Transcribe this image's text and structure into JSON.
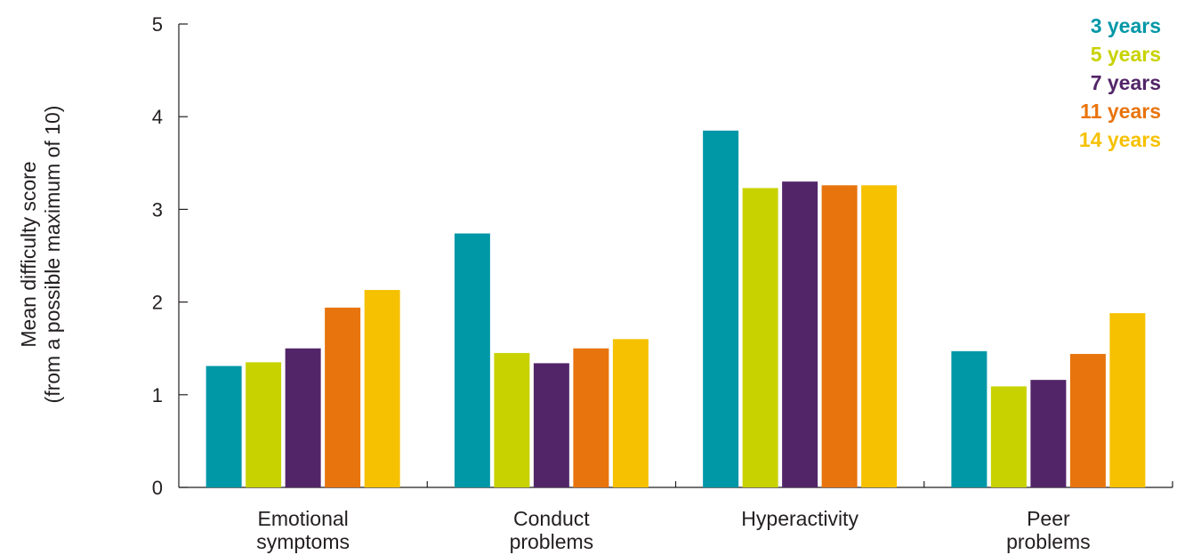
{
  "chart_data": {
    "type": "bar",
    "categories": [
      [
        "Emotional",
        "symptoms"
      ],
      [
        "Conduct",
        "problems"
      ],
      [
        "Hyperactivity"
      ],
      [
        "Peer",
        "problems"
      ]
    ],
    "series": [
      {
        "name": "3 years",
        "color": "#0097a7",
        "values": [
          1.31,
          2.74,
          3.85,
          1.47
        ]
      },
      {
        "name": "5 years",
        "color": "#c8d200",
        "values": [
          1.35,
          1.45,
          3.23,
          1.09
        ]
      },
      {
        "name": "7 years",
        "color": "#522568",
        "values": [
          1.5,
          1.34,
          3.3,
          1.16
        ]
      },
      {
        "name": "11 years",
        "color": "#e8740d",
        "values": [
          1.94,
          1.5,
          3.26,
          1.44
        ]
      },
      {
        "name": "14 years",
        "color": "#f6c100",
        "values": [
          2.13,
          1.6,
          3.26,
          1.88
        ]
      }
    ],
    "ylabel": [
      "Mean difficulty score",
      "(from a possible maximum of 10)"
    ],
    "ylim": [
      0,
      5
    ],
    "yticks": [
      0,
      1,
      2,
      3,
      4,
      5
    ],
    "grid": false,
    "legend_position": "top-right"
  }
}
